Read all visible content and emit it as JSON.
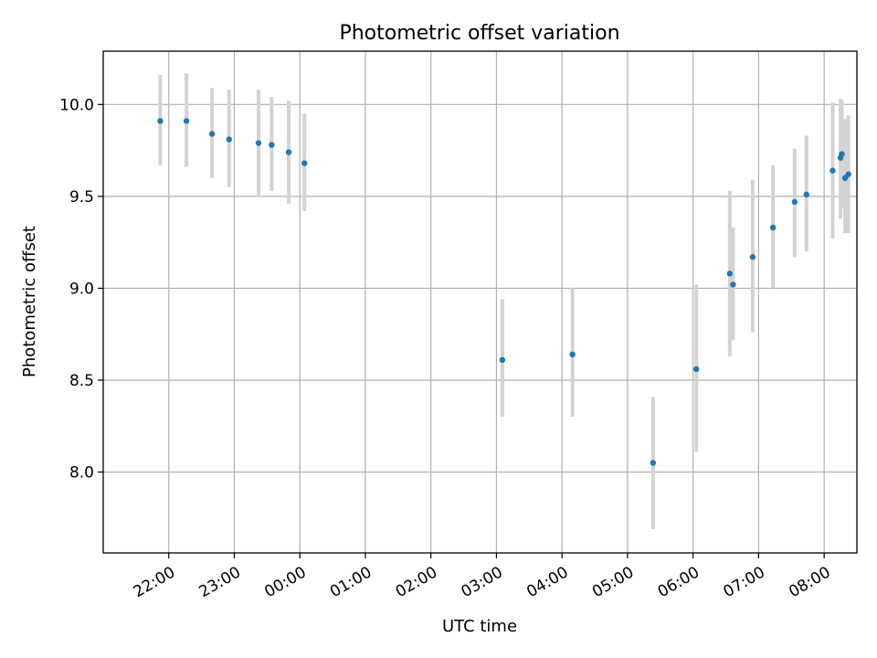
{
  "chart_data": {
    "type": "scatter",
    "title": "Photometric offset variation",
    "xlabel": "UTC time",
    "ylabel": "Photometric offset",
    "xlim_hours": [
      21.0,
      32.5
    ],
    "ylim": [
      7.56,
      10.29
    ],
    "x_ticks": [
      {
        "hour": 22,
        "label": "22:00"
      },
      {
        "hour": 23,
        "label": "23:00"
      },
      {
        "hour": 24,
        "label": "00:00"
      },
      {
        "hour": 25,
        "label": "01:00"
      },
      {
        "hour": 26,
        "label": "02:00"
      },
      {
        "hour": 27,
        "label": "03:00"
      },
      {
        "hour": 28,
        "label": "04:00"
      },
      {
        "hour": 29,
        "label": "05:00"
      },
      {
        "hour": 30,
        "label": "06:00"
      },
      {
        "hour": 31,
        "label": "07:00"
      },
      {
        "hour": 32,
        "label": "08:00"
      }
    ],
    "y_ticks": [
      {
        "value": 8.0,
        "label": "8.0"
      },
      {
        "value": 8.5,
        "label": "8.5"
      },
      {
        "value": 9.0,
        "label": "9.0"
      },
      {
        "value": 9.5,
        "label": "9.5"
      },
      {
        "value": 10.0,
        "label": "10.0"
      }
    ],
    "grid": true,
    "points": [
      {
        "hour": 21.87,
        "y": 9.91,
        "ylow": 9.67,
        "yhigh": 10.16
      },
      {
        "hour": 22.27,
        "y": 9.91,
        "ylow": 9.66,
        "yhigh": 10.17
      },
      {
        "hour": 22.66,
        "y": 9.84,
        "ylow": 9.6,
        "yhigh": 10.09
      },
      {
        "hour": 22.92,
        "y": 9.81,
        "ylow": 9.55,
        "yhigh": 10.08
      },
      {
        "hour": 23.37,
        "y": 9.79,
        "ylow": 9.5,
        "yhigh": 10.08
      },
      {
        "hour": 23.57,
        "y": 9.78,
        "ylow": 9.53,
        "yhigh": 10.04
      },
      {
        "hour": 23.83,
        "y": 9.74,
        "ylow": 9.46,
        "yhigh": 10.02
      },
      {
        "hour": 24.07,
        "y": 9.68,
        "ylow": 9.42,
        "yhigh": 9.95
      },
      {
        "hour": 27.09,
        "y": 8.61,
        "ylow": 8.3,
        "yhigh": 8.94
      },
      {
        "hour": 28.16,
        "y": 8.64,
        "ylow": 8.3,
        "yhigh": 9.0
      },
      {
        "hour": 29.39,
        "y": 8.05,
        "ylow": 7.69,
        "yhigh": 8.41
      },
      {
        "hour": 30.05,
        "y": 8.56,
        "ylow": 8.11,
        "yhigh": 9.02
      },
      {
        "hour": 30.56,
        "y": 9.08,
        "ylow": 8.63,
        "yhigh": 9.53
      },
      {
        "hour": 30.61,
        "y": 9.02,
        "ylow": 8.72,
        "yhigh": 9.33
      },
      {
        "hour": 30.91,
        "y": 9.17,
        "ylow": 8.76,
        "yhigh": 9.59
      },
      {
        "hour": 31.22,
        "y": 9.33,
        "ylow": 9.0,
        "yhigh": 9.67
      },
      {
        "hour": 31.55,
        "y": 9.47,
        "ylow": 9.17,
        "yhigh": 9.76
      },
      {
        "hour": 31.73,
        "y": 9.51,
        "ylow": 9.2,
        "yhigh": 9.83
      },
      {
        "hour": 32.13,
        "y": 9.64,
        "ylow": 9.27,
        "yhigh": 10.01
      },
      {
        "hour": 32.25,
        "y": 9.71,
        "ylow": 9.38,
        "yhigh": 10.03
      },
      {
        "hour": 32.27,
        "y": 9.73,
        "ylow": 9.44,
        "yhigh": 10.02
      },
      {
        "hour": 32.32,
        "y": 9.6,
        "ylow": 9.3,
        "yhigh": 9.92
      },
      {
        "hour": 32.37,
        "y": 9.62,
        "ylow": 9.3,
        "yhigh": 9.94
      }
    ],
    "colors": {
      "point": "#1f77b4",
      "errorbar": "#d3d3d3",
      "grid": "#b0b0b0"
    }
  }
}
